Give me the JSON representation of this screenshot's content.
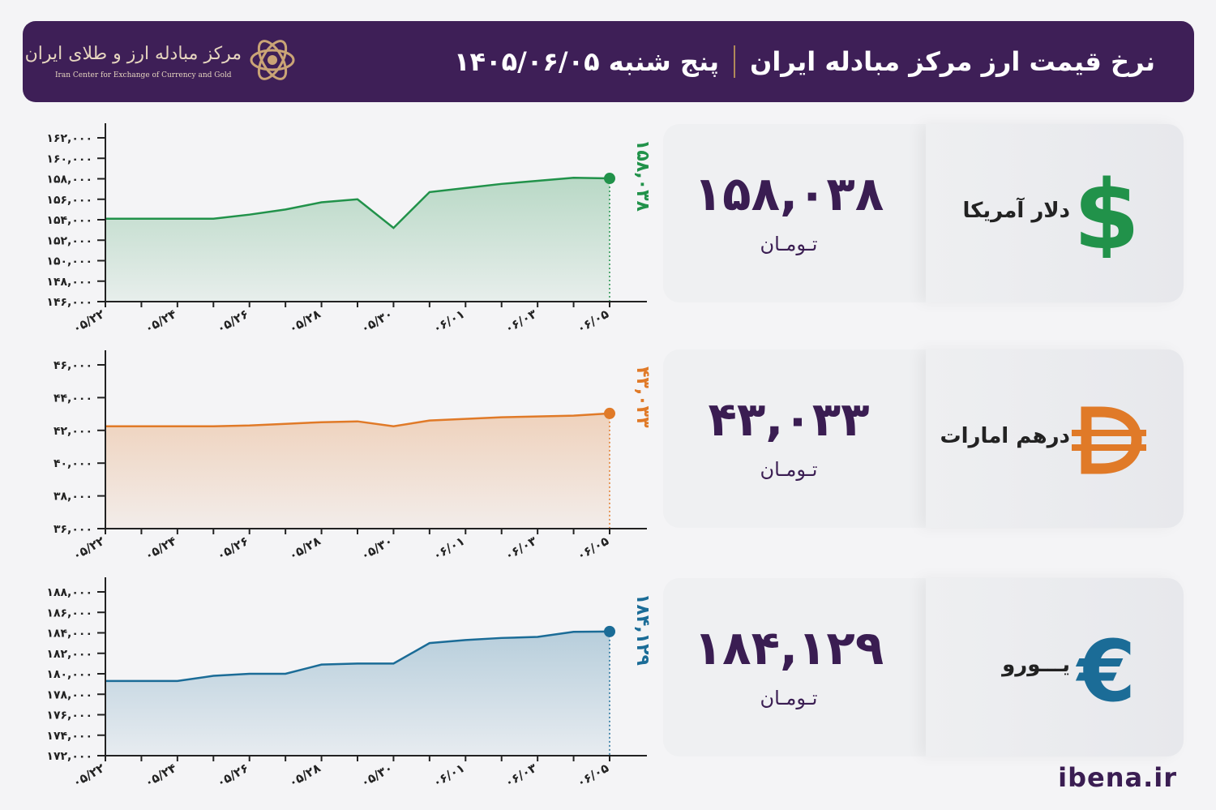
{
  "header": {
    "title": "نرخ قیمت ارز مرکز مبادله ایران",
    "date": "پنج شنبه  ۱۴۰۵/۰۶/۰۵",
    "logo_fa": "مرکز مبادله ارز و طلای ایران",
    "logo_en": "Iran Center for Exchange of Currency and Gold"
  },
  "currencies": [
    {
      "name": "دلار آمریکا",
      "price": "۱۵۸,۰۳۸",
      "unit": "تـومـان",
      "icon": "dollar-icon",
      "color": "#21924a"
    },
    {
      "name": "درهم امارات",
      "price": "۴۳,۰۳۳",
      "unit": "تـومـان",
      "icon": "dirham-icon",
      "color": "#e07a28"
    },
    {
      "name": "یـــورو",
      "price": "۱۸۴,۱۲۹",
      "unit": "تـومـان",
      "icon": "euro-icon",
      "color": "#1b6c97"
    }
  ],
  "chart_data": [
    {
      "type": "area",
      "series": [
        {
          "name": "دلار آمریکا",
          "color": "#21924a",
          "x": [
            "05/22",
            "05/23",
            "05/24",
            "05/25",
            "05/26",
            "05/27",
            "05/28",
            "05/29",
            "05/30",
            "05/31",
            "06/01",
            "06/02",
            "06/03",
            "06/04",
            "06/05"
          ],
          "values": [
            154100,
            154100,
            154100,
            154100,
            154500,
            155000,
            155700,
            156000,
            153200,
            156700,
            157100,
            157500,
            157800,
            158100,
            158038
          ]
        }
      ],
      "x_tick_labels": [
        "۰۵/۲۲",
        "۰۵/۲۴",
        "۰۵/۲۶",
        "۰۵/۲۸",
        "۰۵/۳۰",
        "۰۶/۰۱",
        "۰۶/۰۳",
        "۰۶/۰۵"
      ],
      "y_tick_labels": [
        "۱۶۲,۰۰۰",
        "۱۶۰,۰۰۰",
        "۱۵۸,۰۰۰",
        "۱۵۶,۰۰۰",
        "۱۵۴,۰۰۰",
        "۱۵۲,۰۰۰",
        "۱۵۰,۰۰۰",
        "۱۴۸,۰۰۰",
        "۱۴۶,۰۰۰"
      ],
      "ylim": [
        146000,
        162000
      ],
      "last_label": "۱۵۸,۰۳۸",
      "grid": false
    },
    {
      "type": "area",
      "series": [
        {
          "name": "درهم امارات",
          "color": "#e07a28",
          "x": [
            "05/22",
            "05/23",
            "05/24",
            "05/25",
            "05/26",
            "05/27",
            "05/28",
            "05/29",
            "05/30",
            "05/31",
            "06/01",
            "06/02",
            "06/03",
            "06/04",
            "06/05"
          ],
          "values": [
            42250,
            42250,
            42250,
            42250,
            42300,
            42400,
            42500,
            42550,
            42250,
            42600,
            42700,
            42800,
            42850,
            42900,
            43033
          ]
        }
      ],
      "x_tick_labels": [
        "۰۵/۲۲",
        "۰۵/۲۴",
        "۰۵/۲۶",
        "۰۵/۲۸",
        "۰۵/۳۰",
        "۰۶/۰۱",
        "۰۶/۰۳",
        "۰۶/۰۵"
      ],
      "y_tick_labels": [
        "۴۶,۰۰۰",
        "۴۴,۰۰۰",
        "۴۲,۰۰۰",
        "۴۰,۰۰۰",
        "۳۸,۰۰۰",
        "۳۶,۰۰۰"
      ],
      "ylim": [
        36000,
        46000
      ],
      "last_label": "۴۳,۰۳۳",
      "grid": false
    },
    {
      "type": "area",
      "series": [
        {
          "name": "یورو",
          "color": "#1b6c97",
          "x": [
            "05/22",
            "05/23",
            "05/24",
            "05/25",
            "05/26",
            "05/27",
            "05/28",
            "05/29",
            "05/30",
            "05/31",
            "06/01",
            "06/02",
            "06/03",
            "06/04",
            "06/05"
          ],
          "values": [
            179300,
            179300,
            179300,
            179800,
            180000,
            180000,
            180900,
            181000,
            181000,
            183000,
            183300,
            183500,
            183600,
            184100,
            184129
          ]
        }
      ],
      "x_tick_labels": [
        "۰۵/۲۲",
        "۰۵/۲۴",
        "۰۵/۲۶",
        "۰۵/۲۸",
        "۰۵/۳۰",
        "۰۶/۰۱",
        "۰۶/۰۳",
        "۰۶/۰۵"
      ],
      "y_tick_labels": [
        "۱۸۸,۰۰۰",
        "۱۸۶,۰۰۰",
        "۱۸۴,۰۰۰",
        "۱۸۲,۰۰۰",
        "۱۸۰,۰۰۰",
        "۱۷۸,۰۰۰",
        "۱۷۶,۰۰۰",
        "۱۷۴,۰۰۰",
        "۱۷۲,۰۰۰"
      ],
      "ylim": [
        172000,
        188000
      ],
      "last_label": "۱۸۴,۱۲۹",
      "grid": false
    }
  ],
  "footer": {
    "site": "ibena.ir"
  }
}
